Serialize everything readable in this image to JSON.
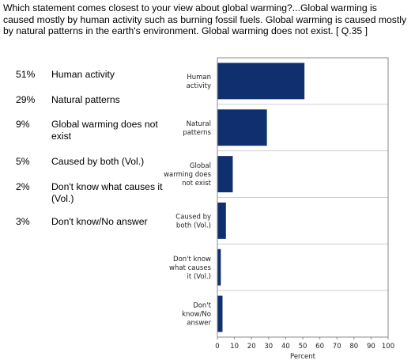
{
  "question": "Which statement comes closest to your view about global warming?...Global warming is caused mostly by human activity such as burning fossil fuels. Global warming is caused mostly by natural patterns in the earth's environment. Global warming does not exist. [ Q.35 ]",
  "legend": [
    {
      "pct": "51%",
      "label": "Human activity"
    },
    {
      "pct": "29%",
      "label": "Natural patterns"
    },
    {
      "pct": "9%",
      "label": "Global warming does not exist"
    },
    {
      "pct": "5%",
      "label": "Caused by both (Vol.)"
    },
    {
      "pct": "2%",
      "label": "Don't know what causes it (Vol.)"
    },
    {
      "pct": "3%",
      "label": "Don't know/No answer"
    }
  ],
  "chart_data": {
    "type": "bar",
    "orientation": "horizontal",
    "categories": [
      [
        "Human",
        "activity"
      ],
      [
        "Natural",
        "patterns"
      ],
      [
        "Global",
        "warming does",
        "not exist"
      ],
      [
        "Caused by",
        "both (Vol.)"
      ],
      [
        "Don't know",
        "what causes",
        "it (Vol.)"
      ],
      [
        "Don't",
        "know/No",
        "answer"
      ]
    ],
    "values": [
      51,
      29,
      9,
      5,
      2,
      3
    ],
    "xlabel": "Percent",
    "xlim": [
      0,
      100
    ],
    "xticks": [
      0,
      10,
      20,
      30,
      40,
      50,
      60,
      70,
      80,
      90,
      100
    ],
    "bar_color": "#0f2f6e",
    "grid": true
  }
}
